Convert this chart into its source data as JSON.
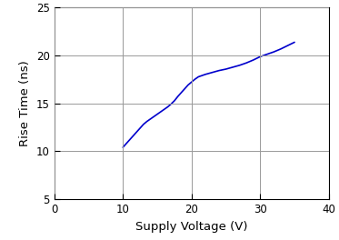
{
  "x": [
    10,
    10.5,
    11,
    11.5,
    12,
    12.5,
    13,
    13.5,
    14,
    14.5,
    15,
    15.5,
    16,
    16.5,
    17,
    17.5,
    18,
    18.5,
    19,
    19.5,
    20,
    20.5,
    21,
    22,
    23,
    24,
    25,
    26,
    27,
    28,
    29,
    30,
    31,
    32,
    33,
    34,
    35
  ],
  "y": [
    10.4,
    10.8,
    11.2,
    11.6,
    12.0,
    12.4,
    12.8,
    13.1,
    13.35,
    13.6,
    13.85,
    14.1,
    14.35,
    14.6,
    14.9,
    15.25,
    15.7,
    16.1,
    16.5,
    16.9,
    17.2,
    17.5,
    17.75,
    18.0,
    18.2,
    18.4,
    18.55,
    18.75,
    18.95,
    19.2,
    19.5,
    19.85,
    20.1,
    20.35,
    20.65,
    21.0,
    21.35
  ],
  "line_color": "#0000cc",
  "line_width": 1.2,
  "xlabel": "Supply Voltage (V)",
  "ylabel": "Rise Time (ns)",
  "xlim": [
    0,
    40
  ],
  "ylim": [
    5,
    25
  ],
  "xticks": [
    0,
    10,
    20,
    30,
    40
  ],
  "yticks": [
    5,
    10,
    15,
    20,
    25
  ],
  "grid_color": "#999999",
  "grid_linewidth": 0.7,
  "background_color": "#ffffff",
  "tick_labelsize": 8.5,
  "axis_labelsize": 9.5
}
